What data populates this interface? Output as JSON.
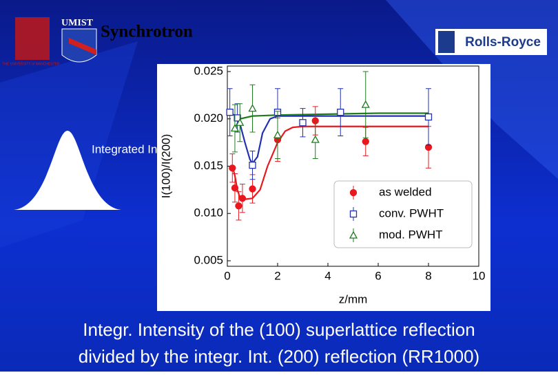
{
  "header": {
    "title": "Synchrotron",
    "logo_left_text": "UMIST",
    "university": "THE UNIVERSITY of MANCHESTER",
    "logo_right_text": "Rolls-Royce"
  },
  "side_label": "Integrated Intensity",
  "caption": [
    "Integr. Intensity of the (100) superlattice reflection",
    "divided by the integr. Int. (200) reflection (RR1000)"
  ],
  "chart_data": {
    "type": "scatter",
    "x_label": "z/mm",
    "y_label": "I(100)/I(200)",
    "xlim": [
      0,
      10
    ],
    "xticks": [
      0,
      2,
      4,
      6,
      8,
      10
    ],
    "ylim": [
      0.005,
      0.025
    ],
    "yticks": [
      0.005,
      {
        "value": 0.01,
        "label": "0.010"
      },
      0.015,
      {
        "value": 0.02,
        "label": "0.020"
      },
      0.025
    ],
    "legend": "lower right",
    "series": [
      {
        "name": "as welded",
        "color": "#e8181e",
        "marker": "circle",
        "x": [
          0.2,
          0.3,
          0.45,
          0.6,
          1.0,
          2.0,
          3.5,
          5.5,
          8.0
        ],
        "values": [
          0.0148,
          0.0127,
          0.0108,
          0.0116,
          0.0126,
          0.0178,
          0.0198,
          0.0176,
          0.017
        ],
        "errors": [
          0.0015,
          0.0015,
          0.0015,
          0.0015,
          0.0015,
          0.0023,
          0.0015,
          0.0015,
          0.0022
        ],
        "fit": {
          "x": [
            0.2,
            0.3,
            0.4,
            0.5,
            0.7,
            1.0,
            1.3,
            1.6,
            2.0,
            2.3,
            2.6,
            3,
            4,
            6,
            8
          ],
          "values": [
            0.015,
            0.014,
            0.0125,
            0.0117,
            0.0115,
            0.0116,
            0.0125,
            0.015,
            0.0175,
            0.0187,
            0.0191,
            0.0192,
            0.0192,
            0.0192,
            0.0192
          ]
        }
      },
      {
        "name": "conv. PWHT",
        "color": "#2030b0",
        "marker": "square",
        "x": [
          0.1,
          0.4,
          1.0,
          2.0,
          3.0,
          4.5,
          8.0
        ],
        "values": [
          0.0207,
          0.0201,
          0.0151,
          0.0207,
          0.0196,
          0.0207,
          0.0202
        ],
        "errors": [
          0.0025,
          0.0015,
          0.0015,
          0.0025,
          0.0015,
          0.0025,
          0.003
        ],
        "fit": {
          "x": [
            0.05,
            0.3,
            0.5,
            0.7,
            0.9,
            1.0,
            1.2,
            1.4,
            1.7,
            2,
            4,
            6,
            8
          ],
          "values": [
            0.0206,
            0.0204,
            0.0195,
            0.0175,
            0.0157,
            0.0153,
            0.016,
            0.0185,
            0.02,
            0.0203,
            0.0203,
            0.0203,
            0.0203
          ]
        }
      },
      {
        "name": "mod. PWHT",
        "color": "#207a20",
        "marker": "triangle",
        "x": [
          0.3,
          0.5,
          1.0,
          2.0,
          3.5,
          5.5
        ],
        "values": [
          0.019,
          0.0196,
          0.0211,
          0.0183,
          0.0178,
          0.0215
        ],
        "errors": [
          0.0025,
          0.002,
          0.0025,
          0.0025,
          0.002,
          0.0035
        ],
        "fit": {
          "x": [
            0.3,
            0.5,
            1,
            2,
            4,
            6,
            8
          ],
          "values": [
            0.019,
            0.02,
            0.0203,
            0.0204,
            0.0205,
            0.0206,
            0.0206
          ]
        }
      }
    ]
  }
}
